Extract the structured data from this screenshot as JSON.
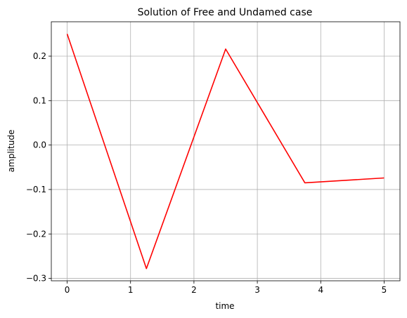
{
  "chart_data": {
    "type": "line",
    "title": "Solution of Free and Undamed case",
    "xlabel": "time",
    "ylabel": "amplitude",
    "x": [
      0,
      1.25,
      2.5,
      3.75,
      5
    ],
    "series": [
      {
        "values": [
          0.25,
          -0.278,
          0.216,
          -0.085,
          -0.074
        ],
        "color": "#ff0000"
      }
    ],
    "xlim": [
      -0.25,
      5.25
    ],
    "ylim": [
      -0.3054,
      0.2774
    ],
    "xticks": [
      0,
      1,
      2,
      3,
      4,
      5
    ],
    "xtick_labels": [
      "0",
      "1",
      "2",
      "3",
      "4",
      "5"
    ],
    "yticks": [
      -0.3,
      -0.2,
      -0.1,
      0.0,
      0.1,
      0.2
    ],
    "ytick_labels": [
      "−0.3",
      "−0.2",
      "−0.1",
      "0.0",
      "0.1",
      "0.2"
    ],
    "grid": true,
    "grid_color": "#b0b0b0"
  }
}
